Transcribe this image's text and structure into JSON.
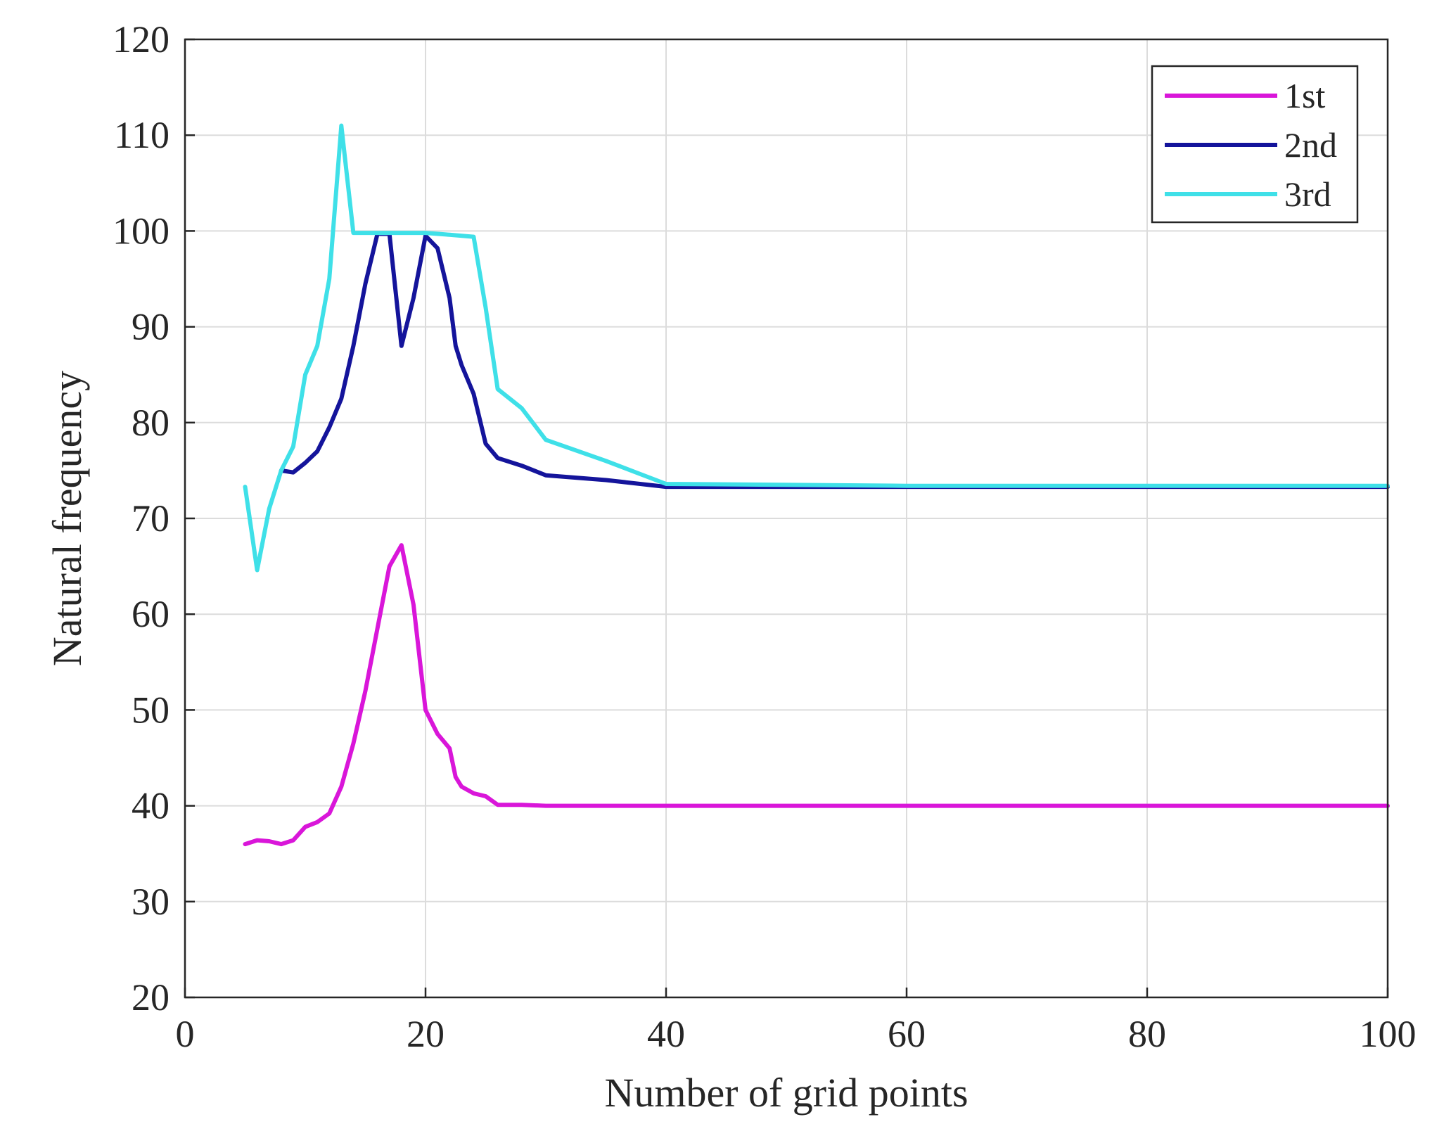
{
  "chart_data": {
    "type": "line",
    "title": "",
    "xlabel": "Number of grid points",
    "ylabel": "Natural frequency",
    "xlim": [
      0,
      100
    ],
    "ylim": [
      20,
      120
    ],
    "xticks": [
      0,
      20,
      40,
      60,
      80,
      100
    ],
    "yticks": [
      20,
      30,
      40,
      50,
      60,
      70,
      80,
      90,
      100,
      110,
      120
    ],
    "grid": true,
    "legend_position": "top-right",
    "series": [
      {
        "name": "1st",
        "color": "#d916d9",
        "x": [
          5,
          6,
          7,
          8,
          9,
          10,
          11,
          12,
          13,
          14,
          15,
          16,
          17,
          18,
          19,
          20,
          21,
          22,
          22.5,
          23,
          24,
          25,
          26,
          28,
          30,
          40,
          60,
          80,
          100
        ],
        "y": [
          36,
          36.4,
          36.3,
          36,
          36.4,
          37.8,
          38.3,
          39.2,
          42,
          46.5,
          52,
          58.5,
          65,
          67.2,
          61,
          50,
          47.5,
          46,
          43,
          42,
          41.3,
          41,
          40.1,
          40.1,
          40,
          40,
          40,
          40,
          40
        ]
      },
      {
        "name": "2nd",
        "color": "#14149b",
        "x": [
          8,
          9,
          10,
          11,
          12,
          13,
          14,
          15,
          16,
          17,
          18,
          19,
          20,
          21,
          22,
          22.5,
          23,
          24,
          25,
          26,
          28,
          30,
          35,
          40,
          60,
          80,
          100
        ],
        "y": [
          75,
          74.8,
          75.8,
          77,
          79.5,
          82.5,
          88,
          94.5,
          99.7,
          99.7,
          88,
          93,
          99.5,
          98.2,
          93,
          88,
          86,
          83,
          77.8,
          76.3,
          75.5,
          74.5,
          74,
          73.3,
          73.3,
          73.3,
          73.3
        ]
      },
      {
        "name": "3rd",
        "color": "#3fe0e8",
        "x": [
          5,
          6,
          7,
          8,
          9,
          10,
          11,
          12,
          13,
          14,
          16,
          18,
          20,
          22,
          24,
          25,
          26,
          28,
          30,
          35,
          40,
          60,
          80,
          100
        ],
        "y": [
          73.3,
          64.6,
          71,
          75,
          77.5,
          85,
          88,
          95,
          111,
          99.8,
          99.8,
          99.8,
          99.8,
          99.6,
          99.4,
          92,
          83.5,
          81.5,
          78.2,
          76,
          73.6,
          73.4,
          73.4,
          73.4
        ]
      }
    ]
  }
}
